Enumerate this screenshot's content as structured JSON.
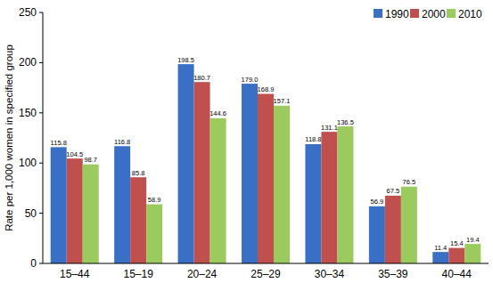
{
  "chart_data": {
    "type": "bar",
    "y_label": "Rate per 1,000 women in specified group",
    "categories": [
      "15–44",
      "15–19",
      "20–24",
      "25–29",
      "30–34",
      "35–39",
      "40–44"
    ],
    "series": [
      {
        "name": "1990",
        "color": "#3a6fc6",
        "values": [
          115.8,
          116.8,
          198.5,
          179.0,
          118.8,
          56.9,
          11.4
        ],
        "value_labels": [
          "115.8",
          "116.8",
          "198.5",
          "179.0",
          "118.8",
          "56.9",
          "11.4"
        ]
      },
      {
        "name": "2000",
        "color": "#c0504d",
        "values": [
          104.5,
          85.8,
          180.7,
          168.9,
          131.1,
          67.5,
          15.4
        ],
        "value_labels": [
          "104.5",
          "85.8",
          "180.7",
          "168.9",
          "131.1",
          "67.5",
          "15.4"
        ]
      },
      {
        "name": "2010",
        "color": "#9bcb5f",
        "values": [
          98.7,
          58.9,
          144.6,
          157.1,
          136.5,
          76.5,
          19.4
        ],
        "value_labels": [
          "98.7",
          "58.9",
          "144.6",
          "157.1",
          "136.5",
          "76.5",
          "19.4"
        ]
      }
    ],
    "ylim": [
      0,
      250
    ],
    "yticks": [
      0,
      50,
      100,
      150,
      200,
      250
    ],
    "grid": false,
    "legend": "top-right",
    "data_labels": true
  }
}
